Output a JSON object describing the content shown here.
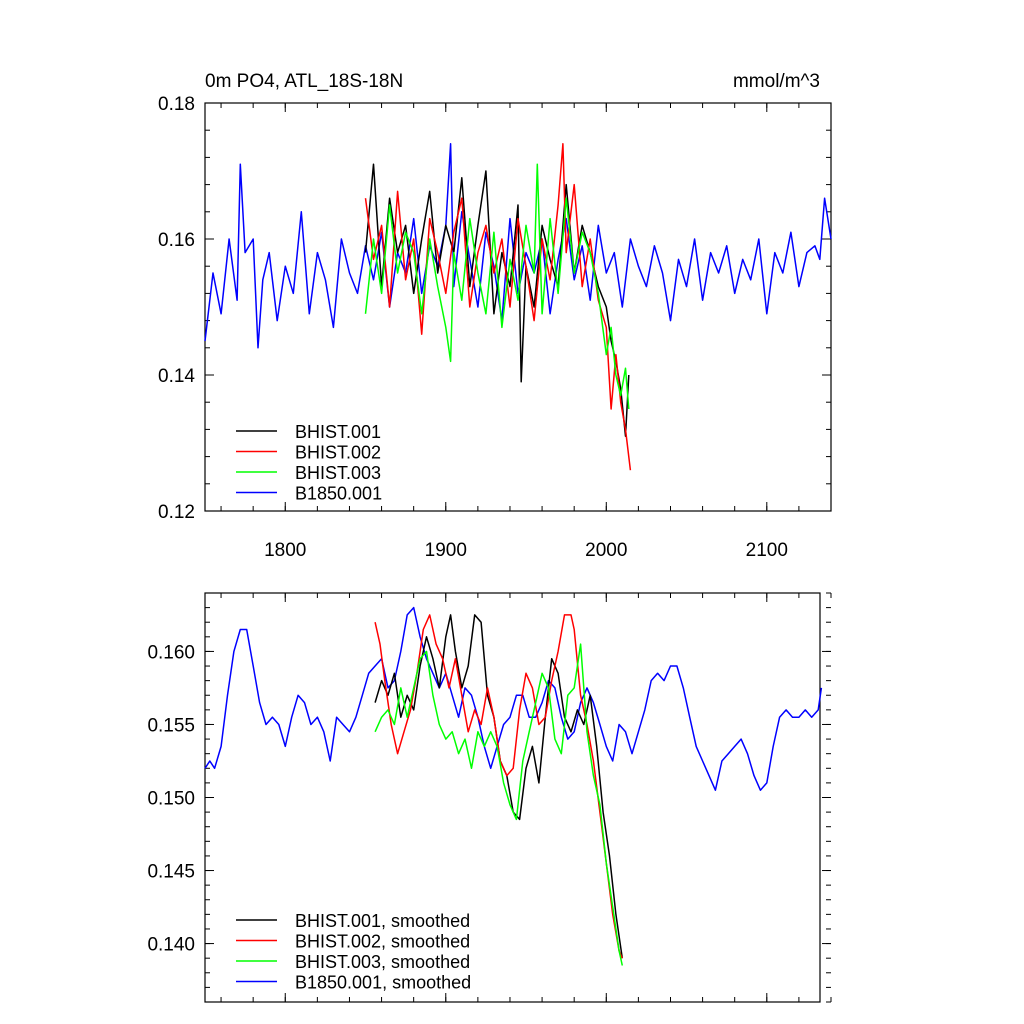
{
  "chart_data": [
    {
      "type": "line",
      "title": "0m PO4, ATL_18S-18N",
      "units_label": "mmol/m^3",
      "xlim": [
        1750,
        2140
      ],
      "ylim": [
        0.12,
        0.18
      ],
      "x_ticks": [
        1800,
        1900,
        2000,
        2100
      ],
      "x_tick_labels": [
        "1800",
        "1900",
        "2000",
        "2100"
      ],
      "y_ticks": [
        0.12,
        0.14,
        0.16,
        0.18
      ],
      "y_tick_labels": [
        "0.12",
        "0.14",
        "0.16",
        "0.18"
      ],
      "grid": false,
      "legend_position": "bottom-left",
      "series": [
        {
          "name": "BHIST.001",
          "color": "#000000",
          "x": [
            1850,
            1855,
            1860,
            1865,
            1870,
            1875,
            1880,
            1885,
            1890,
            1895,
            1900,
            1905,
            1910,
            1915,
            1920,
            1925,
            1930,
            1935,
            1940,
            1945,
            1947,
            1950,
            1955,
            1960,
            1965,
            1970,
            1975,
            1980,
            1985,
            1990,
            1995,
            2000,
            2003,
            2006,
            2009,
            2012,
            2014
          ],
          "y": [
            0.158,
            0.171,
            0.153,
            0.166,
            0.158,
            0.162,
            0.152,
            0.16,
            0.167,
            0.155,
            0.162,
            0.158,
            0.169,
            0.153,
            0.162,
            0.17,
            0.149,
            0.158,
            0.153,
            0.165,
            0.139,
            0.156,
            0.15,
            0.162,
            0.157,
            0.153,
            0.168,
            0.155,
            0.162,
            0.158,
            0.153,
            0.15,
            0.145,
            0.142,
            0.138,
            0.131,
            0.14
          ]
        },
        {
          "name": "BHIST.002",
          "color": "#ff0000",
          "x": [
            1850,
            1855,
            1860,
            1865,
            1870,
            1875,
            1880,
            1885,
            1890,
            1895,
            1900,
            1905,
            1910,
            1915,
            1920,
            1925,
            1930,
            1935,
            1940,
            1945,
            1950,
            1955,
            1960,
            1965,
            1970,
            1973,
            1975,
            1980,
            1985,
            1990,
            1995,
            2000,
            2003,
            2006,
            2009,
            2012,
            2015
          ],
          "y": [
            0.166,
            0.157,
            0.162,
            0.15,
            0.167,
            0.154,
            0.16,
            0.146,
            0.163,
            0.158,
            0.152,
            0.161,
            0.166,
            0.15,
            0.158,
            0.162,
            0.155,
            0.16,
            0.15,
            0.163,
            0.156,
            0.148,
            0.16,
            0.154,
            0.165,
            0.174,
            0.158,
            0.168,
            0.153,
            0.16,
            0.151,
            0.147,
            0.135,
            0.143,
            0.136,
            0.132,
            0.126
          ]
        },
        {
          "name": "BHIST.003",
          "color": "#00ff00",
          "x": [
            1850,
            1855,
            1860,
            1865,
            1870,
            1875,
            1880,
            1885,
            1890,
            1895,
            1900,
            1903,
            1905,
            1910,
            1915,
            1920,
            1925,
            1930,
            1935,
            1940,
            1945,
            1950,
            1955,
            1957,
            1960,
            1965,
            1970,
            1975,
            1980,
            1985,
            1990,
            1995,
            2000,
            2003,
            2006,
            2009,
            2012,
            2014
          ],
          "y": [
            0.149,
            0.16,
            0.152,
            0.165,
            0.155,
            0.161,
            0.158,
            0.149,
            0.16,
            0.153,
            0.147,
            0.142,
            0.158,
            0.151,
            0.163,
            0.155,
            0.149,
            0.161,
            0.147,
            0.157,
            0.151,
            0.162,
            0.155,
            0.171,
            0.149,
            0.163,
            0.152,
            0.166,
            0.155,
            0.161,
            0.158,
            0.152,
            0.143,
            0.147,
            0.14,
            0.137,
            0.141,
            0.135
          ]
        },
        {
          "name": "B1850.001",
          "color": "#0000ff",
          "x": [
            1750,
            1755,
            1760,
            1765,
            1770,
            1772,
            1775,
            1780,
            1783,
            1786,
            1790,
            1795,
            1800,
            1805,
            1810,
            1815,
            1820,
            1825,
            1830,
            1835,
            1840,
            1845,
            1850,
            1855,
            1860,
            1865,
            1870,
            1875,
            1880,
            1885,
            1890,
            1895,
            1900,
            1903,
            1905,
            1910,
            1915,
            1920,
            1925,
            1930,
            1935,
            1940,
            1945,
            1950,
            1955,
            1960,
            1965,
            1970,
            1975,
            1980,
            1985,
            1990,
            1995,
            2000,
            2005,
            2010,
            2015,
            2020,
            2025,
            2030,
            2035,
            2040,
            2045,
            2050,
            2055,
            2060,
            2065,
            2070,
            2075,
            2080,
            2085,
            2090,
            2095,
            2100,
            2105,
            2110,
            2115,
            2120,
            2125,
            2130,
            2133,
            2136,
            2140
          ],
          "y": [
            0.145,
            0.155,
            0.149,
            0.16,
            0.151,
            0.171,
            0.158,
            0.16,
            0.144,
            0.154,
            0.158,
            0.148,
            0.156,
            0.152,
            0.164,
            0.149,
            0.158,
            0.154,
            0.147,
            0.16,
            0.155,
            0.152,
            0.159,
            0.154,
            0.161,
            0.15,
            0.158,
            0.155,
            0.163,
            0.152,
            0.159,
            0.156,
            0.162,
            0.174,
            0.153,
            0.164,
            0.157,
            0.15,
            0.161,
            0.156,
            0.148,
            0.163,
            0.152,
            0.158,
            0.155,
            0.16,
            0.149,
            0.157,
            0.163,
            0.154,
            0.159,
            0.151,
            0.162,
            0.155,
            0.158,
            0.15,
            0.16,
            0.156,
            0.153,
            0.159,
            0.155,
            0.148,
            0.157,
            0.153,
            0.16,
            0.151,
            0.158,
            0.155,
            0.159,
            0.152,
            0.157,
            0.154,
            0.16,
            0.149,
            0.158,
            0.155,
            0.161,
            0.153,
            0.158,
            0.159,
            0.157,
            0.166,
            0.16
          ]
        }
      ]
    },
    {
      "type": "line",
      "xlim": [
        1750,
        2140
      ],
      "ylim": [
        0.136,
        0.164
      ],
      "x_ticks": [
        1800,
        1900,
        2000,
        2100
      ],
      "y_ticks": [
        0.14,
        0.145,
        0.15,
        0.155,
        0.16
      ],
      "y_tick_labels": [
        "0.140",
        "0.145",
        "0.150",
        "0.155",
        "0.160"
      ],
      "grid": false,
      "legend_position": "bottom-left",
      "series": [
        {
          "name": "BHIST.001, smoothed",
          "color": "#000000",
          "x": [
            1856,
            1860,
            1864,
            1868,
            1872,
            1876,
            1880,
            1884,
            1888,
            1892,
            1896,
            1900,
            1903,
            1906,
            1910,
            1914,
            1918,
            1922,
            1926,
            1930,
            1934,
            1938,
            1942,
            1946,
            1950,
            1954,
            1958,
            1962,
            1966,
            1970,
            1974,
            1978,
            1982,
            1986,
            1990,
            1994,
            1998,
            2002,
            2006,
            2010
          ],
          "y": [
            0.1565,
            0.158,
            0.157,
            0.1585,
            0.1555,
            0.157,
            0.156,
            0.159,
            0.161,
            0.1595,
            0.1575,
            0.161,
            0.1625,
            0.16,
            0.1575,
            0.159,
            0.1625,
            0.162,
            0.157,
            0.1555,
            0.1525,
            0.1515,
            0.149,
            0.1485,
            0.152,
            0.1535,
            0.151,
            0.1555,
            0.1595,
            0.1585,
            0.1555,
            0.1545,
            0.156,
            0.155,
            0.157,
            0.1535,
            0.149,
            0.146,
            0.142,
            0.139
          ]
        },
        {
          "name": "BHIST.002, smoothed",
          "color": "#ff0000",
          "x": [
            1856,
            1859,
            1862,
            1866,
            1870,
            1874,
            1878,
            1882,
            1886,
            1890,
            1894,
            1898,
            1902,
            1906,
            1910,
            1914,
            1918,
            1922,
            1926,
            1930,
            1934,
            1938,
            1942,
            1946,
            1950,
            1954,
            1958,
            1962,
            1966,
            1970,
            1974,
            1978,
            1980,
            1984,
            1988,
            1992,
            1996,
            2000,
            2004,
            2008,
            2010
          ],
          "y": [
            0.162,
            0.1605,
            0.158,
            0.155,
            0.153,
            0.1545,
            0.156,
            0.1585,
            0.1615,
            0.1625,
            0.1605,
            0.1595,
            0.1575,
            0.1595,
            0.157,
            0.1545,
            0.156,
            0.155,
            0.1575,
            0.1555,
            0.1525,
            0.1515,
            0.152,
            0.156,
            0.1585,
            0.1575,
            0.155,
            0.1555,
            0.158,
            0.16,
            0.1625,
            0.1625,
            0.1615,
            0.157,
            0.155,
            0.1525,
            0.149,
            0.1455,
            0.142,
            0.1395,
            0.139
          ]
        },
        {
          "name": "BHIST.003, smoothed",
          "color": "#00ff00",
          "x": [
            1856,
            1860,
            1864,
            1868,
            1872,
            1876,
            1880,
            1884,
            1888,
            1892,
            1896,
            1900,
            1904,
            1908,
            1912,
            1916,
            1920,
            1924,
            1928,
            1932,
            1936,
            1940,
            1944,
            1948,
            1952,
            1956,
            1960,
            1964,
            1968,
            1972,
            1976,
            1980,
            1984,
            1988,
            1992,
            1996,
            2000,
            2004,
            2008,
            2010
          ],
          "y": [
            0.1545,
            0.1555,
            0.156,
            0.155,
            0.1575,
            0.1555,
            0.1575,
            0.1595,
            0.16,
            0.157,
            0.155,
            0.154,
            0.1545,
            0.153,
            0.154,
            0.152,
            0.1545,
            0.1535,
            0.1545,
            0.1535,
            0.151,
            0.1495,
            0.1485,
            0.1525,
            0.1545,
            0.1565,
            0.1585,
            0.1575,
            0.154,
            0.153,
            0.157,
            0.1575,
            0.1605,
            0.1545,
            0.1515,
            0.1495,
            0.1455,
            0.1425,
            0.1395,
            0.1385
          ]
        },
        {
          "name": "B1850.001, smoothed",
          "color": "#0000ff",
          "x": [
            1750,
            1753,
            1756,
            1760,
            1764,
            1768,
            1772,
            1776,
            1780,
            1784,
            1788,
            1792,
            1796,
            1800,
            1804,
            1808,
            1812,
            1816,
            1820,
            1824,
            1828,
            1832,
            1836,
            1840,
            1844,
            1848,
            1852,
            1856,
            1860,
            1864,
            1868,
            1872,
            1876,
            1880,
            1884,
            1888,
            1892,
            1896,
            1900,
            1904,
            1908,
            1912,
            1916,
            1920,
            1924,
            1928,
            1932,
            1936,
            1940,
            1944,
            1948,
            1952,
            1956,
            1960,
            1964,
            1968,
            1972,
            1976,
            1980,
            1984,
            1988,
            1992,
            1996,
            2000,
            2004,
            2008,
            2012,
            2016,
            2020,
            2024,
            2028,
            2032,
            2036,
            2040,
            2044,
            2048,
            2052,
            2056,
            2060,
            2064,
            2068,
            2072,
            2076,
            2080,
            2084,
            2088,
            2092,
            2096,
            2100,
            2104,
            2108,
            2112,
            2116,
            2120,
            2124,
            2128,
            2132,
            2134
          ],
          "y": [
            0.152,
            0.1525,
            0.152,
            0.1535,
            0.157,
            0.16,
            0.1615,
            0.1615,
            0.159,
            0.1565,
            0.155,
            0.1555,
            0.155,
            0.1535,
            0.1555,
            0.157,
            0.1565,
            0.155,
            0.1555,
            0.1545,
            0.1525,
            0.1555,
            0.155,
            0.1545,
            0.1555,
            0.157,
            0.1585,
            0.159,
            0.1595,
            0.1575,
            0.158,
            0.16,
            0.1625,
            0.163,
            0.161,
            0.1595,
            0.1585,
            0.1575,
            0.1585,
            0.157,
            0.1555,
            0.1575,
            0.157,
            0.1555,
            0.1535,
            0.152,
            0.1535,
            0.155,
            0.1555,
            0.157,
            0.157,
            0.1555,
            0.1555,
            0.1565,
            0.158,
            0.1575,
            0.1555,
            0.154,
            0.1545,
            0.1565,
            0.1575,
            0.1565,
            0.155,
            0.1535,
            0.1525,
            0.155,
            0.1545,
            0.153,
            0.1545,
            0.156,
            0.158,
            0.1585,
            0.158,
            0.159,
            0.159,
            0.1575,
            0.1555,
            0.1535,
            0.1525,
            0.1515,
            0.1505,
            0.1525,
            0.153,
            0.1535,
            0.154,
            0.153,
            0.1515,
            0.1505,
            0.151,
            0.1535,
            0.1555,
            0.156,
            0.1555,
            0.1555,
            0.156,
            0.1555,
            0.156,
            0.1575
          ]
        }
      ]
    }
  ]
}
